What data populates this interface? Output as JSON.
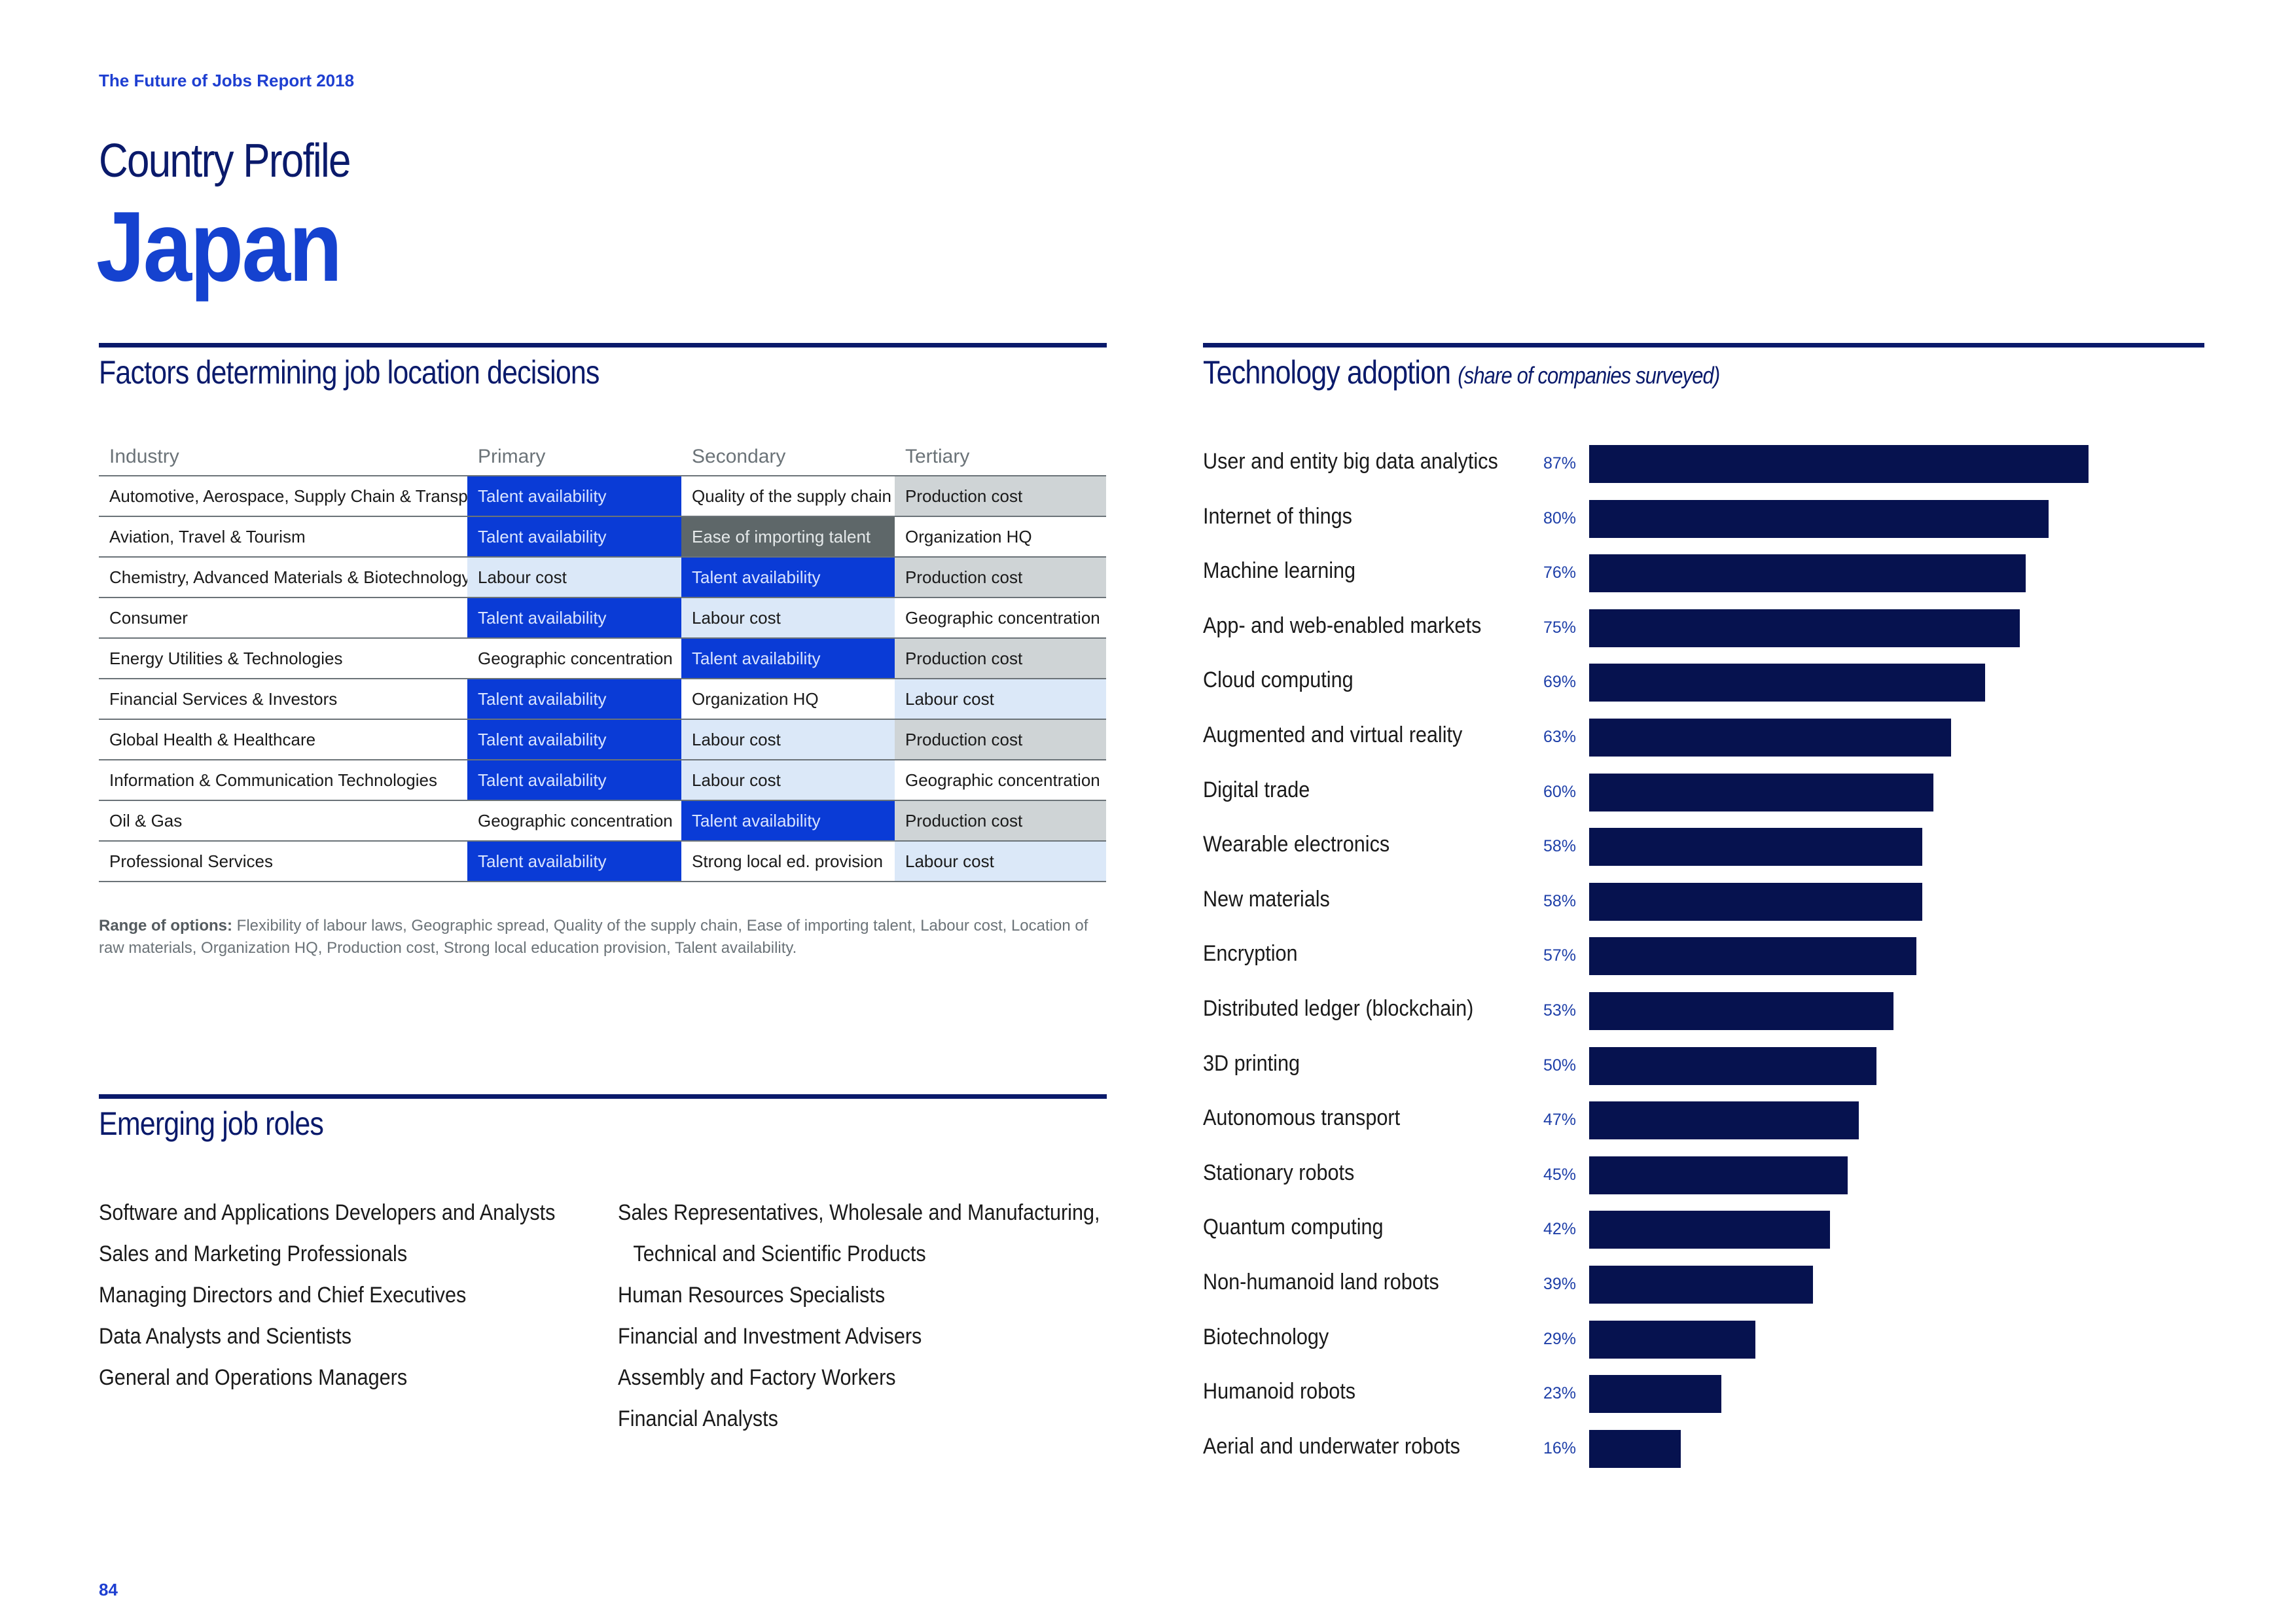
{
  "header": {
    "report_title": "The Future of Jobs Report 2018",
    "profile_label": "Country Profile",
    "country": "Japan"
  },
  "factors": {
    "title": "Factors determining job location decisions",
    "columns": [
      "Industry",
      "Primary",
      "Secondary",
      "Tertiary"
    ],
    "rows": [
      {
        "industry": "Automotive, Aerospace, Supply Chain & Transport",
        "primary": "Talent availability",
        "secondary": "Quality of the supply chain",
        "tertiary": "Production cost"
      },
      {
        "industry": "Aviation, Travel & Tourism",
        "primary": "Talent availability",
        "secondary": "Ease of importing talent",
        "tertiary": "Organization HQ"
      },
      {
        "industry": "Chemistry, Advanced Materials & Biotechnology",
        "primary": "Labour cost",
        "secondary": "Talent availability",
        "tertiary": "Production cost"
      },
      {
        "industry": "Consumer",
        "primary": "Talent availability",
        "secondary": "Labour cost",
        "tertiary": "Geographic concentration"
      },
      {
        "industry": "Energy Utilities & Technologies",
        "primary": "Geographic concentration",
        "secondary": "Talent availability",
        "tertiary": "Production cost"
      },
      {
        "industry": "Financial Services & Investors",
        "primary": "Talent availability",
        "secondary": "Organization HQ",
        "tertiary": "Labour cost"
      },
      {
        "industry": "Global Health & Healthcare",
        "primary": "Talent availability",
        "secondary": "Labour cost",
        "tertiary": "Production cost"
      },
      {
        "industry": "Information & Communication Technologies",
        "primary": "Talent availability",
        "secondary": "Labour cost",
        "tertiary": "Geographic concentration"
      },
      {
        "industry": "Oil & Gas",
        "primary": "Geographic concentration",
        "secondary": "Talent availability",
        "tertiary": "Production cost"
      },
      {
        "industry": "Professional Services",
        "primary": "Talent availability",
        "secondary": "Strong local ed. provision",
        "tertiary": "Labour cost"
      }
    ],
    "note_label": "Range of options:",
    "note_text": "Flexibility of labour laws, Geographic spread, Quality of the supply chain, Ease of importing talent, Labour cost, Location of raw materials, Organization HQ, Production cost, Strong local education provision, Talent availability."
  },
  "roles": {
    "title": "Emerging job roles",
    "col1": [
      "Software and Applications Developers and Analysts",
      "Sales and Marketing Professionals",
      "Managing Directors and Chief Executives",
      "Data Analysts and Scientists",
      "General and Operations Managers"
    ],
    "col2_first_line": "Sales Representatives, Wholesale and Manufacturing,",
    "col2_first_cont": "Technical and Scientific Products",
    "col2": [
      "Human Resources Specialists",
      "Financial and Investment Advisers",
      "Assembly and Factory Workers",
      "Financial Analysts"
    ]
  },
  "tech": {
    "title": "Technology adoption",
    "subtitle": "(share of companies surveyed)"
  },
  "chart_data": {
    "type": "bar",
    "orientation": "horizontal",
    "title": "Technology adoption (share of companies surveyed)",
    "categories": [
      "User and entity big data analytics",
      "Internet of things",
      "Machine learning",
      "App- and web-enabled markets",
      "Cloud computing",
      "Augmented and virtual reality",
      "Digital trade",
      "Wearable electronics",
      "New materials",
      "Encryption",
      "Distributed ledger (blockchain)",
      "3D printing",
      "Autonomous transport",
      "Stationary robots",
      "Quantum computing",
      "Non-humanoid land robots",
      "Biotechnology",
      "Humanoid robots",
      "Aerial and underwater robots"
    ],
    "values": [
      87,
      80,
      76,
      75,
      69,
      63,
      60,
      58,
      58,
      57,
      53,
      50,
      47,
      45,
      42,
      39,
      29,
      23,
      16
    ],
    "labels": [
      "87%",
      "80%",
      "76%",
      "75%",
      "69%",
      "63%",
      "60%",
      "58%",
      "58%",
      "57%",
      "53%",
      "50%",
      "47%",
      "45%",
      "42%",
      "39%",
      "29%",
      "23%",
      "16%"
    ],
    "xlim": [
      0,
      100
    ],
    "unit": "%"
  },
  "footer": {
    "page_number": "84"
  },
  "colors": {
    "accent_blue": "#1542cf",
    "navy": "#0a1a6b",
    "bar": "#06124f"
  }
}
